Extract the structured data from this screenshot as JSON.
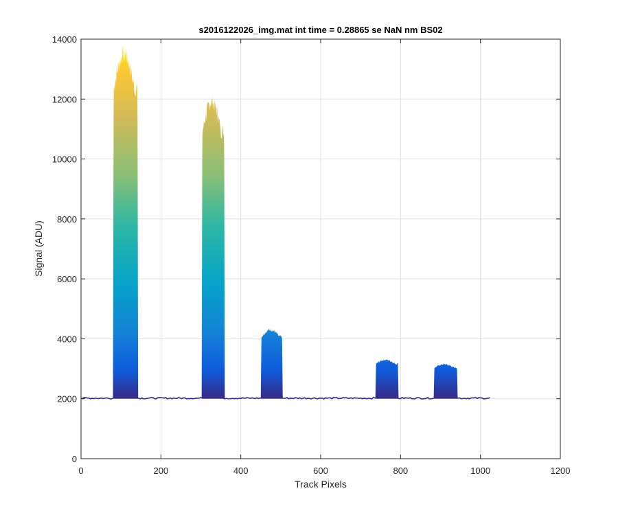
{
  "chart_data": {
    "type": "area",
    "title": "s2016122026_img.mat int time = 0.28865 se  NaN nm BS02",
    "xlabel": "Track Pixels",
    "ylabel": "Signal (ADU)",
    "xlim": [
      0,
      1200
    ],
    "ylim": [
      0,
      14000
    ],
    "xticks": [
      "0",
      "200",
      "400",
      "600",
      "800",
      "1000",
      "1200"
    ],
    "yticks": [
      "0",
      "2000",
      "4000",
      "6000",
      "8000",
      "10000",
      "12000",
      "14000"
    ],
    "grid": true,
    "baseline": 2020,
    "data_x_range": [
      0,
      1024
    ],
    "colormap": "parula",
    "colors": [
      "#352a87",
      "#0f5cdd",
      "#1481d6",
      "#06a4ca",
      "#2eb7a4",
      "#87bf77",
      "#d1bb59",
      "#fec832",
      "#f9fb0e"
    ],
    "peaks": [
      {
        "x_start": 80,
        "x_end": 143,
        "top": 13500
      },
      {
        "x_start": 302,
        "x_end": 360,
        "top": 11900
      },
      {
        "x_start": 450,
        "x_end": 505,
        "top": 4300
      },
      {
        "x_start": 737,
        "x_end": 795,
        "top": 3300
      },
      {
        "x_start": 883,
        "x_end": 943,
        "top": 3150
      }
    ]
  }
}
